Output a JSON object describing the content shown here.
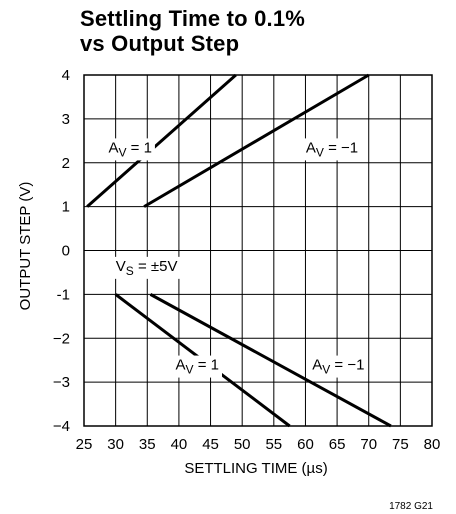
{
  "title_line1": "Settling Time to 0.1%",
  "title_line2": "vs Output Step",
  "figure_id": "1782 G21",
  "colors": {
    "line": "#000000",
    "grid": "#000000",
    "background": "#ffffff"
  },
  "chart_data": {
    "type": "line",
    "title": "Settling Time to 0.1% vs Output Step",
    "xlabel": "SETTLING TIME (µs)",
    "ylabel": "OUTPUT STEP (V)",
    "xlim": [
      25,
      80
    ],
    "ylim": [
      -4,
      4
    ],
    "xticks": [
      25,
      30,
      35,
      40,
      45,
      50,
      55,
      60,
      65,
      70,
      75,
      80
    ],
    "xtick_labels": [
      "25",
      "30",
      "35",
      "40",
      "45",
      "50",
      "55",
      "60",
      "65",
      "70",
      "75",
      "80"
    ],
    "yticks": [
      4,
      3,
      2,
      1,
      0,
      -1,
      -2,
      -3,
      -4
    ],
    "ytick_labels": [
      "4",
      "3",
      "2",
      "1",
      "0",
      "-1",
      "−2",
      "−3",
      "−4"
    ],
    "grid": true,
    "series": [
      {
        "x": [
          25.5,
          49
        ],
        "y": [
          1,
          4
        ]
      },
      {
        "x": [
          34.5,
          70
        ],
        "y": [
          1,
          4
        ]
      },
      {
        "x": [
          30,
          57.5
        ],
        "y": [
          -1,
          -4
        ]
      },
      {
        "x": [
          35.5,
          73.5
        ],
        "y": [
          -1,
          -4
        ]
      }
    ],
    "annotations": [
      {
        "base": "A",
        "sub": "V",
        "rest": " = 1",
        "x": 32.3,
        "y": 2.35
      },
      {
        "base": "A",
        "sub": "V",
        "rest": " = −1",
        "x": 64.2,
        "y": 2.35
      },
      {
        "base": "V",
        "sub": "S",
        "rest": " = ±5V",
        "x": 34.9,
        "y": -0.35
      },
      {
        "base": "A",
        "sub": "V",
        "rest": " = 1",
        "x": 42.9,
        "y": -2.6
      },
      {
        "base": "A",
        "sub": "V",
        "rest": " = −1",
        "x": 65.2,
        "y": -2.6
      }
    ]
  }
}
